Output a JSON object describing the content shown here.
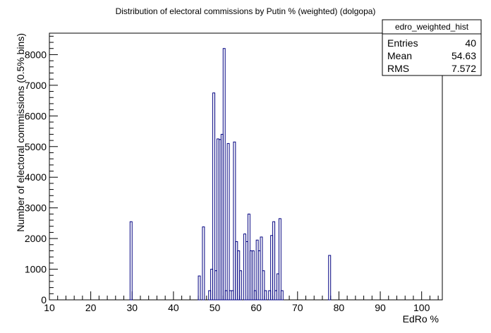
{
  "chart_data": {
    "type": "bar",
    "title": "Distribution of electoral commissions by Putin % (weighted) (dolgopa)",
    "xlabel": "EdRo %",
    "ylabel": "Number of electoral commissions (0.5% bins)",
    "xlim": [
      10,
      105
    ],
    "ylim": [
      0,
      8700
    ],
    "bin_width": 0.5,
    "x_ticks": [
      10,
      20,
      30,
      40,
      50,
      60,
      70,
      80,
      90,
      100
    ],
    "y_ticks": [
      0,
      1000,
      2000,
      3000,
      4000,
      5000,
      6000,
      7000,
      8000
    ],
    "bins": [
      {
        "x": 29.5,
        "y": 2550
      },
      {
        "x": 46.0,
        "y": 780
      },
      {
        "x": 47.0,
        "y": 2380
      },
      {
        "x": 48.5,
        "y": 300
      },
      {
        "x": 49.0,
        "y": 1000
      },
      {
        "x": 49.5,
        "y": 6750
      },
      {
        "x": 50.0,
        "y": 950
      },
      {
        "x": 50.5,
        "y": 5250
      },
      {
        "x": 51.0,
        "y": 5230
      },
      {
        "x": 51.5,
        "y": 5400
      },
      {
        "x": 52.0,
        "y": 8200
      },
      {
        "x": 52.5,
        "y": 300
      },
      {
        "x": 53.0,
        "y": 5100
      },
      {
        "x": 53.5,
        "y": 300
      },
      {
        "x": 54.0,
        "y": 300
      },
      {
        "x": 54.5,
        "y": 5150
      },
      {
        "x": 55.0,
        "y": 1900
      },
      {
        "x": 55.5,
        "y": 1600
      },
      {
        "x": 56.0,
        "y": 950
      },
      {
        "x": 57.0,
        "y": 2150
      },
      {
        "x": 57.5,
        "y": 1900
      },
      {
        "x": 58.0,
        "y": 2800
      },
      {
        "x": 58.5,
        "y": 1600
      },
      {
        "x": 59.0,
        "y": 1600
      },
      {
        "x": 59.5,
        "y": 300
      },
      {
        "x": 60.0,
        "y": 1950
      },
      {
        "x": 60.5,
        "y": 1600
      },
      {
        "x": 61.0,
        "y": 2050
      },
      {
        "x": 61.5,
        "y": 950
      },
      {
        "x": 62.0,
        "y": 300
      },
      {
        "x": 63.0,
        "y": 300
      },
      {
        "x": 63.5,
        "y": 2100
      },
      {
        "x": 64.0,
        "y": 2550
      },
      {
        "x": 64.5,
        "y": 300
      },
      {
        "x": 65.0,
        "y": 850
      },
      {
        "x": 65.5,
        "y": 2650
      },
      {
        "x": 66.0,
        "y": 300
      },
      {
        "x": 77.5,
        "y": 1450
      }
    ],
    "grid": false,
    "legend": "none",
    "colors": {
      "line": "#000080",
      "axis": "#000000"
    }
  },
  "stats_box": {
    "name": "edro_weighted_hist",
    "rows": [
      {
        "label": "Entries",
        "value": "40"
      },
      {
        "label": "Mean",
        "value": "54.63"
      },
      {
        "label": "RMS",
        "value": "7.572"
      }
    ]
  }
}
